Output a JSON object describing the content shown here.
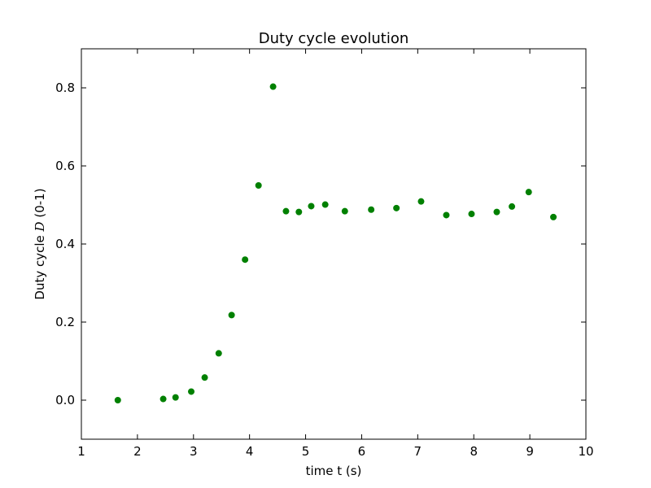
{
  "chart_data": {
    "type": "scatter",
    "title": "Duty cycle evolution",
    "xlabel": "time t (s)",
    "ylabel_prefix": "Duty cycle ",
    "ylabel_symbol": "D",
    "ylabel_suffix": " (0-1)",
    "xlim": [
      1,
      10
    ],
    "ylim": [
      -0.1,
      0.9
    ],
    "xticks": [
      1,
      2,
      3,
      4,
      5,
      6,
      7,
      8,
      9,
      10
    ],
    "xtick_labels": [
      "1",
      "2",
      "3",
      "4",
      "5",
      "6",
      "7",
      "8",
      "9",
      "10"
    ],
    "yticks": [
      0.0,
      0.2,
      0.4,
      0.6,
      0.8
    ],
    "ytick_labels": [
      "0.0",
      "0.2",
      "0.4",
      "0.6",
      "0.8"
    ],
    "grid": false,
    "marker_color": "#008000",
    "points": [
      {
        "x": 1.65,
        "y": 0.0
      },
      {
        "x": 2.46,
        "y": 0.003
      },
      {
        "x": 2.68,
        "y": 0.007
      },
      {
        "x": 2.96,
        "y": 0.022
      },
      {
        "x": 3.2,
        "y": 0.058
      },
      {
        "x": 3.45,
        "y": 0.12
      },
      {
        "x": 3.68,
        "y": 0.218
      },
      {
        "x": 3.92,
        "y": 0.36
      },
      {
        "x": 4.16,
        "y": 0.55
      },
      {
        "x": 4.42,
        "y": 0.803
      },
      {
        "x": 4.65,
        "y": 0.484
      },
      {
        "x": 4.88,
        "y": 0.482
      },
      {
        "x": 5.1,
        "y": 0.497
      },
      {
        "x": 5.35,
        "y": 0.501
      },
      {
        "x": 5.7,
        "y": 0.484
      },
      {
        "x": 6.17,
        "y": 0.488
      },
      {
        "x": 6.62,
        "y": 0.492
      },
      {
        "x": 7.06,
        "y": 0.509
      },
      {
        "x": 7.51,
        "y": 0.474
      },
      {
        "x": 7.96,
        "y": 0.477
      },
      {
        "x": 8.41,
        "y": 0.482
      },
      {
        "x": 8.68,
        "y": 0.496
      },
      {
        "x": 8.98,
        "y": 0.533
      },
      {
        "x": 9.42,
        "y": 0.469
      }
    ]
  }
}
